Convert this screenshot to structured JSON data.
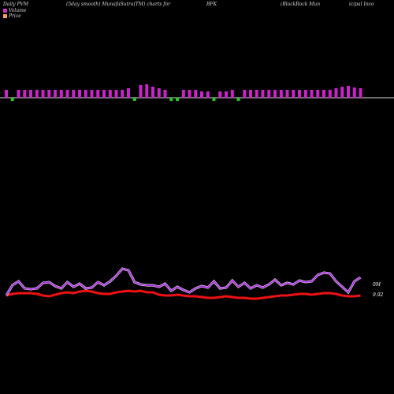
{
  "header": {
    "left": "Daily PVM",
    "mid": "(5day smooth) MunafaSutra(TM) charts for",
    "symbol": "BFK",
    "right": "(BlackRock Mun",
    "far_right": "icipal Inco"
  },
  "chart_data": {
    "type": "bar+line",
    "legend": [
      {
        "label": "Volume",
        "color": "#cc33cc"
      },
      {
        "label": "Price",
        "color": "#ff9966"
      }
    ],
    "right_labels": {
      "volume_tick": "0M",
      "price_tick": "9.92"
    },
    "volume_bars": {
      "heights": [
        10,
        10,
        10,
        10,
        10,
        10,
        10,
        10,
        10,
        10,
        10,
        10,
        10,
        10,
        10,
        10,
        10,
        10,
        10,
        10,
        12,
        14,
        16,
        17,
        14,
        12,
        10,
        10,
        10,
        10,
        10,
        10,
        8,
        8,
        8,
        8,
        8,
        10,
        10,
        10,
        10,
        10,
        10,
        10,
        10,
        10,
        10,
        10,
        10,
        10,
        10,
        10,
        10,
        10,
        12,
        14,
        15,
        13,
        12
      ],
      "directions": [
        "up",
        "down",
        "up",
        "up",
        "up",
        "up",
        "up",
        "up",
        "up",
        "up",
        "up",
        "up",
        "up",
        "up",
        "up",
        "up",
        "up",
        "up",
        "up",
        "up",
        "up",
        "down",
        "up",
        "up",
        "up",
        "up",
        "up",
        "down",
        "down",
        "up",
        "up",
        "up",
        "up",
        "up",
        "down",
        "up",
        "up",
        "up",
        "down",
        "up",
        "up",
        "up",
        "up",
        "up",
        "up",
        "up",
        "up",
        "up",
        "up",
        "up",
        "up",
        "up",
        "up",
        "up",
        "up",
        "up",
        "up",
        "up",
        "up"
      ]
    },
    "volume_line": [
      375,
      362,
      357,
      366,
      367,
      366,
      359,
      358,
      363,
      366,
      358,
      364,
      360,
      366,
      365,
      358,
      362,
      357,
      350,
      341,
      343,
      358,
      361,
      362,
      362,
      364,
      360,
      369,
      364,
      368,
      371,
      366,
      363,
      365,
      357,
      366,
      365,
      356,
      364,
      359,
      366,
      362,
      365,
      361,
      355,
      362,
      359,
      361,
      356,
      358,
      357,
      349,
      346,
      347,
      357,
      364,
      371,
      357,
      352
    ],
    "price_line": [
      375,
      373,
      372,
      372,
      372,
      373,
      375,
      376,
      374,
      372,
      371,
      372,
      370,
      369,
      370,
      372,
      373,
      373,
      371,
      370,
      369,
      370,
      369,
      371,
      371,
      374,
      375,
      375,
      374,
      375,
      376,
      376,
      377,
      378,
      378,
      377,
      376,
      377,
      378,
      378,
      379,
      379,
      378,
      377,
      376,
      375,
      375,
      374,
      373,
      373,
      374,
      373,
      372,
      372,
      373,
      375,
      376,
      376,
      375
    ]
  }
}
